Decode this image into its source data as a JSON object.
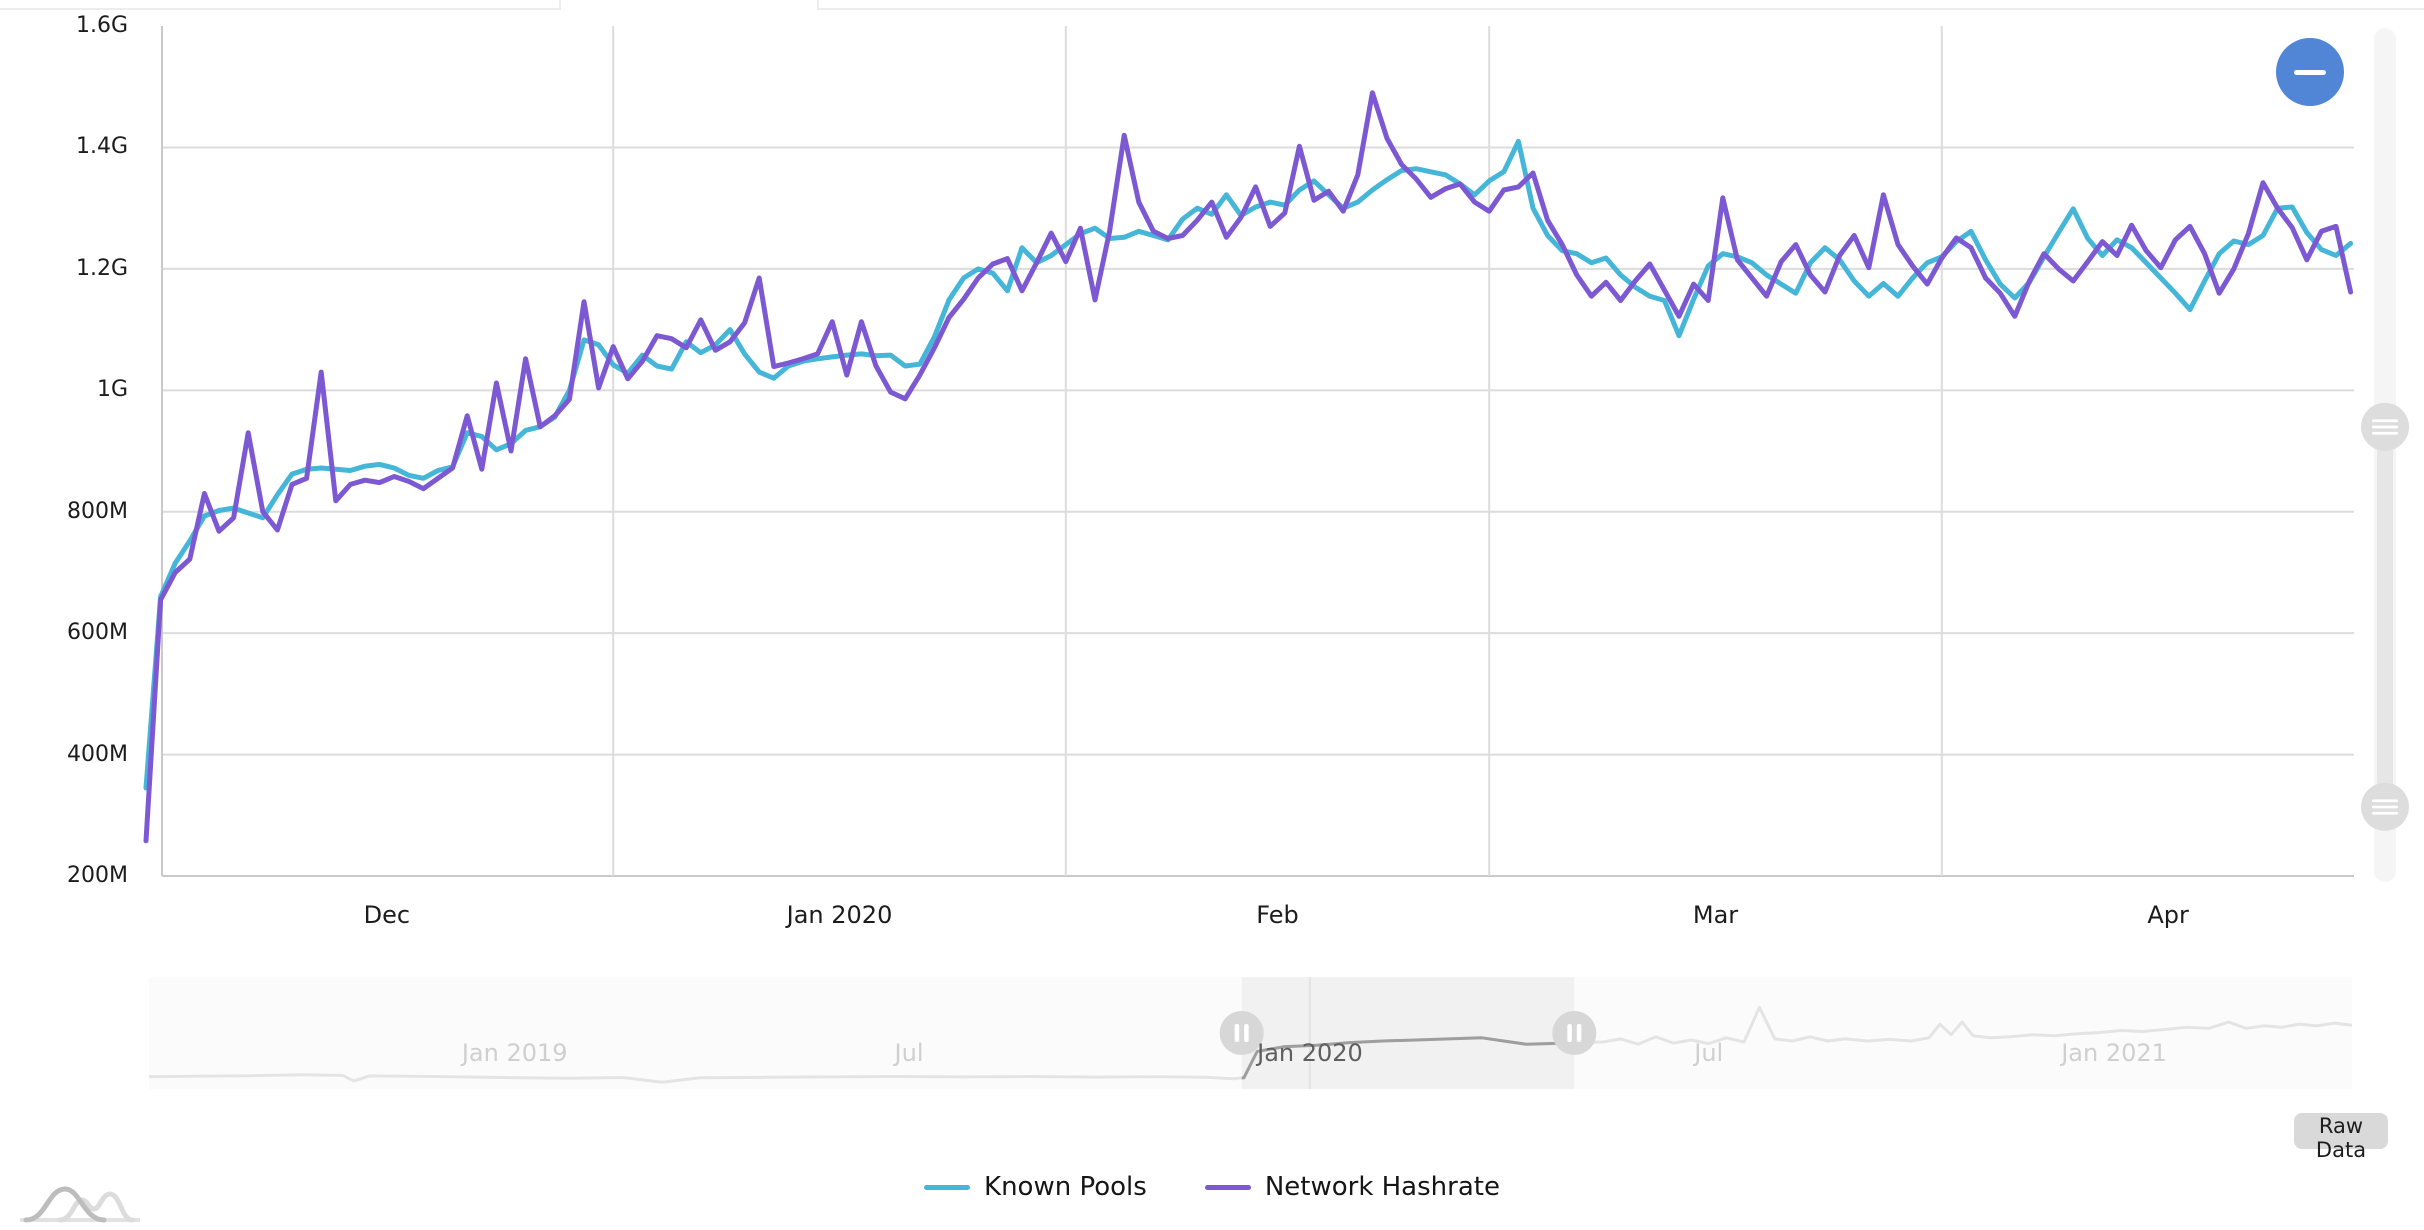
{
  "buttons": {
    "zoom_out_icon": "minus",
    "raw_data": "Raw Data"
  },
  "chart_data": {
    "type": "line",
    "title": "",
    "xlabel": "",
    "ylabel": "",
    "grid": true,
    "legend_position": "bottom",
    "ylim": [
      200,
      1600
    ],
    "y_ticks": [
      {
        "label": "200M",
        "value": 200
      },
      {
        "label": "400M",
        "value": 400
      },
      {
        "label": "600M",
        "value": 600
      },
      {
        "label": "800M",
        "value": 800
      },
      {
        "label": "1G",
        "value": 1000
      },
      {
        "label": "1.2G",
        "value": 1200
      },
      {
        "label": "1.4G",
        "value": 1400
      },
      {
        "label": "1.6G",
        "value": 1600
      }
    ],
    "x_ticks": [
      {
        "label": "Dec",
        "center_day": 16.5
      },
      {
        "label": "Jan 2020",
        "center_day": 47.5
      },
      {
        "label": "Feb",
        "center_day": 77.5
      },
      {
        "label": "Mar",
        "center_day": 107.5
      },
      {
        "label": "Apr",
        "center_day": 138.5
      }
    ],
    "x_gridline_days": [
      32,
      63,
      92,
      123
    ],
    "colors": {
      "grid": "#dcdcdc",
      "axis": "#c9c9c9"
    },
    "series": [
      {
        "name": "Known Pools",
        "color": "#45b6d8",
        "values": [
          345,
          660,
          715,
          752,
          793,
          802,
          806,
          798,
          790,
          828,
          862,
          870,
          872,
          870,
          868,
          875,
          878,
          872,
          860,
          855,
          868,
          874,
          930,
          924,
          902,
          912,
          934,
          940,
          956,
          1000,
          1083,
          1075,
          1042,
          1028,
          1058,
          1040,
          1035,
          1080,
          1062,
          1075,
          1100,
          1060,
          1030,
          1020,
          1040,
          1048,
          1052,
          1055,
          1058,
          1060,
          1057,
          1058,
          1040,
          1043,
          1088,
          1149,
          1185,
          1200,
          1193,
          1164,
          1235,
          1210,
          1222,
          1240,
          1258,
          1267,
          1250,
          1252,
          1262,
          1255,
          1248,
          1282,
          1300,
          1290,
          1322,
          1288,
          1302,
          1310,
          1305,
          1330,
          1345,
          1322,
          1300,
          1310,
          1330,
          1347,
          1362,
          1365,
          1360,
          1355,
          1340,
          1322,
          1345,
          1360,
          1410,
          1300,
          1255,
          1230,
          1225,
          1210,
          1218,
          1190,
          1170,
          1155,
          1148,
          1090,
          1150,
          1205,
          1225,
          1220,
          1210,
          1190,
          1175,
          1160,
          1210,
          1235,
          1215,
          1180,
          1155,
          1176,
          1155,
          1185,
          1210,
          1220,
          1245,
          1262,
          1215,
          1175,
          1152,
          1178,
          1220,
          1260,
          1299,
          1250,
          1222,
          1248,
          1235,
          1210,
          1185,
          1160,
          1133,
          1180,
          1225,
          1246,
          1240,
          1255,
          1300,
          1302,
          1260,
          1232,
          1222,
          1242
        ]
      },
      {
        "name": "Network Hashrate",
        "color": "#7d58d3",
        "values": [
          258,
          655,
          700,
          722,
          830,
          768,
          790,
          930,
          800,
          770,
          845,
          855,
          1030,
          818,
          845,
          852,
          848,
          858,
          850,
          838,
          855,
          872,
          958,
          870,
          1012,
          900,
          1052,
          940,
          958,
          985,
          1146,
          1004,
          1072,
          1019,
          1048,
          1090,
          1085,
          1070,
          1116,
          1066,
          1080,
          1111,
          1185,
          1039,
          1045,
          1052,
          1060,
          1113,
          1025,
          1113,
          1040,
          997,
          986,
          1025,
          1070,
          1120,
          1150,
          1185,
          1208,
          1217,
          1164,
          1210,
          1259,
          1212,
          1267,
          1149,
          1262,
          1420,
          1310,
          1262,
          1250,
          1255,
          1280,
          1310,
          1252,
          1285,
          1335,
          1270,
          1292,
          1402,
          1313,
          1328,
          1295,
          1355,
          1490,
          1415,
          1372,
          1348,
          1318,
          1332,
          1340,
          1310,
          1295,
          1330,
          1335,
          1358,
          1280,
          1240,
          1190,
          1155,
          1178,
          1148,
          1180,
          1208,
          1165,
          1122,
          1175,
          1148,
          1317,
          1215,
          1185,
          1155,
          1212,
          1240,
          1190,
          1162,
          1222,
          1255,
          1202,
          1322,
          1240,
          1205,
          1175,
          1218,
          1251,
          1235,
          1185,
          1160,
          1122,
          1180,
          1225,
          1200,
          1180,
          1212,
          1245,
          1222,
          1272,
          1230,
          1202,
          1248,
          1270,
          1225,
          1160,
          1200,
          1258,
          1342,
          1300,
          1268,
          1215,
          1262,
          1270,
          1162
        ]
      }
    ]
  },
  "navigator": {
    "time_labels": [
      {
        "text": "Jan 2019",
        "fx": 0.166,
        "selected": false
      },
      {
        "text": "Jul",
        "fx": 0.345,
        "selected": false
      },
      {
        "text": "Jan 2020",
        "fx": 0.527,
        "selected": true
      },
      {
        "text": "Jul",
        "fx": 0.708,
        "selected": false
      },
      {
        "text": "Jan 2021",
        "fx": 0.892,
        "selected": false
      }
    ],
    "selection": {
      "from_fx": 0.496,
      "to_fx": 0.647
    },
    "colors": {
      "nav_bg": "#fbfbfb",
      "selection_bg": "#f1f1f1",
      "series_dim": "#e4e4e4",
      "series_active": "#9e9e9e",
      "handle": "#d7d7d7",
      "handle_grip": "#ffffff",
      "gridline": "#e3e3e3"
    },
    "series_shape": [
      [
        0,
        0.06
      ],
      [
        0.02,
        0.065
      ],
      [
        0.045,
        0.07
      ],
      [
        0.07,
        0.078
      ],
      [
        0.088,
        0.072
      ],
      [
        0.093,
        0.018
      ],
      [
        0.1,
        0.068
      ],
      [
        0.13,
        0.062
      ],
      [
        0.16,
        0.052
      ],
      [
        0.19,
        0.046
      ],
      [
        0.215,
        0.052
      ],
      [
        0.233,
        0.008
      ],
      [
        0.25,
        0.05
      ],
      [
        0.28,
        0.054
      ],
      [
        0.31,
        0.058
      ],
      [
        0.34,
        0.062
      ],
      [
        0.37,
        0.058
      ],
      [
        0.4,
        0.062
      ],
      [
        0.43,
        0.056
      ],
      [
        0.46,
        0.06
      ],
      [
        0.48,
        0.055
      ],
      [
        0.492,
        0.04
      ],
      [
        0.497,
        0.05
      ],
      [
        0.503,
        0.3
      ],
      [
        0.515,
        0.345
      ],
      [
        0.53,
        0.36
      ],
      [
        0.545,
        0.385
      ],
      [
        0.56,
        0.4
      ],
      [
        0.575,
        0.41
      ],
      [
        0.59,
        0.42
      ],
      [
        0.605,
        0.43
      ],
      [
        0.615,
        0.4
      ],
      [
        0.625,
        0.37
      ],
      [
        0.635,
        0.375
      ],
      [
        0.647,
        0.385
      ],
      [
        0.66,
        0.39
      ],
      [
        0.668,
        0.42
      ],
      [
        0.676,
        0.37
      ],
      [
        0.684,
        0.44
      ],
      [
        0.692,
        0.38
      ],
      [
        0.7,
        0.41
      ],
      [
        0.708,
        0.375
      ],
      [
        0.716,
        0.43
      ],
      [
        0.724,
        0.39
      ],
      [
        0.731,
        0.72
      ],
      [
        0.738,
        0.42
      ],
      [
        0.746,
        0.4
      ],
      [
        0.754,
        0.44
      ],
      [
        0.762,
        0.4
      ],
      [
        0.77,
        0.42
      ],
      [
        0.78,
        0.4
      ],
      [
        0.79,
        0.415
      ],
      [
        0.8,
        0.4
      ],
      [
        0.808,
        0.43
      ],
      [
        0.813,
        0.56
      ],
      [
        0.818,
        0.46
      ],
      [
        0.823,
        0.58
      ],
      [
        0.828,
        0.45
      ],
      [
        0.836,
        0.43
      ],
      [
        0.845,
        0.44
      ],
      [
        0.855,
        0.46
      ],
      [
        0.865,
        0.45
      ],
      [
        0.875,
        0.47
      ],
      [
        0.885,
        0.48
      ],
      [
        0.895,
        0.5
      ],
      [
        0.905,
        0.49
      ],
      [
        0.915,
        0.51
      ],
      [
        0.925,
        0.53
      ],
      [
        0.935,
        0.52
      ],
      [
        0.944,
        0.58
      ],
      [
        0.952,
        0.52
      ],
      [
        0.96,
        0.545
      ],
      [
        0.968,
        0.53
      ],
      [
        0.976,
        0.56
      ],
      [
        0.984,
        0.545
      ],
      [
        0.992,
        0.57
      ],
      [
        1,
        0.55
      ]
    ]
  },
  "y_zoom_slider": {
    "handle_top_fy": 0.467,
    "handle_bottom_fy": 0.912,
    "colors": {
      "track": "#f5f5f5",
      "bar": "#e6e6e6",
      "handle": "#dddddd",
      "grip": "#ffffff"
    }
  }
}
